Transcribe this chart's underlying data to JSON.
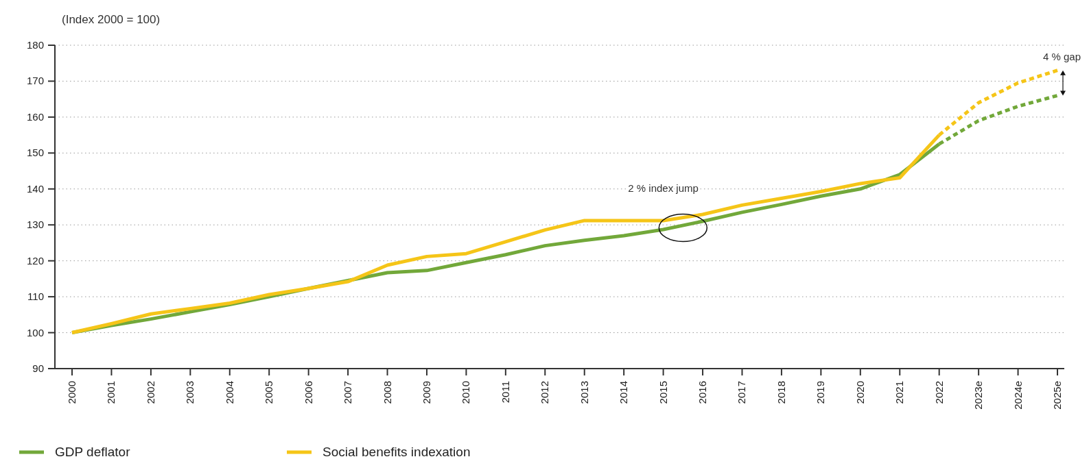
{
  "chart_data": {
    "type": "line",
    "ylabel": "(Index 2000 = 100)",
    "categories": [
      "2000",
      "2001",
      "2002",
      "2003",
      "2004",
      "2005",
      "2006",
      "2007",
      "2008",
      "2009",
      "2010",
      "2011",
      "2012",
      "2013",
      "2014",
      "2015",
      "2016",
      "2017",
      "2018",
      "2019",
      "2020",
      "2021",
      "2022",
      "2023e",
      "2024e",
      "2025e"
    ],
    "series": [
      {
        "name": "GDP deflator",
        "color": "#72a83a",
        "line_style": "solid",
        "values": [
          100,
          102,
          103.8,
          105.8,
          107.8,
          110,
          112.3,
          114.5,
          116.7,
          117.3,
          119.5,
          121.7,
          124.2,
          125.7,
          127,
          128.7,
          131,
          133.5,
          135.7,
          138,
          140,
          144,
          152.5,
          null,
          null,
          null
        ]
      },
      {
        "name": "Social benefits indexation",
        "color": "#f5c518",
        "line_style": "solid",
        "values": [
          100,
          102.5,
          105.2,
          106.7,
          108.2,
          110.6,
          112.3,
          114.2,
          118.8,
          121.2,
          122,
          125.3,
          128.6,
          131.2,
          131.2,
          131.2,
          132.9,
          135.5,
          137.4,
          139.3,
          141.5,
          143.1,
          155,
          null,
          null,
          null
        ]
      },
      {
        "color": "#72a83a",
        "line_style": "dotted",
        "values": [
          null,
          null,
          null,
          null,
          null,
          null,
          null,
          null,
          null,
          null,
          null,
          null,
          null,
          null,
          null,
          null,
          null,
          null,
          null,
          null,
          null,
          null,
          152.5,
          159,
          163,
          166
        ]
      },
      {
        "color": "#f5c518",
        "line_style": "dotted",
        "values": [
          null,
          null,
          null,
          null,
          null,
          null,
          null,
          null,
          null,
          null,
          null,
          null,
          null,
          null,
          null,
          null,
          null,
          null,
          null,
          null,
          null,
          null,
          155,
          164,
          169.5,
          173
        ]
      }
    ],
    "ylim": [
      90,
      180
    ],
    "yticks": [
      90,
      100,
      110,
      120,
      130,
      140,
      150,
      160,
      170,
      180
    ],
    "grid": "y",
    "legend": "bottom left",
    "annotations": [
      "2 % index jump",
      "4 % gap"
    ]
  }
}
